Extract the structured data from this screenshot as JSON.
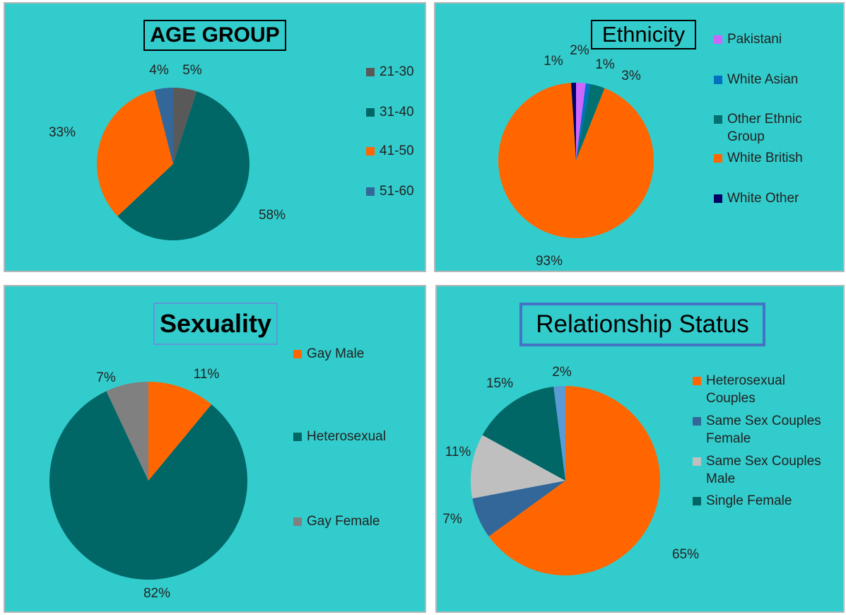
{
  "chart_data": [
    {
      "type": "pie",
      "title": "AGE GROUP",
      "categories": [
        "21-30",
        "31-40",
        "41-50",
        "51-60"
      ],
      "values": [
        5,
        58,
        33,
        4
      ],
      "value_labels": [
        "5%",
        "58%",
        "33%",
        "4%"
      ],
      "colors": [
        "#595959",
        "#006666",
        "#FF6600",
        "#336699"
      ]
    },
    {
      "type": "pie",
      "title": "Ethnicity",
      "categories": [
        "Pakistani",
        "White Asian",
        "Other Ethnic Group",
        "White British",
        "White Other"
      ],
      "values": [
        2,
        1,
        3,
        93,
        1
      ],
      "value_labels": [
        "2%",
        "1%",
        "3%",
        "93%",
        "1%"
      ],
      "colors": [
        "#CC66FF",
        "#0070C0",
        "#007070",
        "#FF6600",
        "#000066"
      ]
    },
    {
      "type": "pie",
      "title": "Sexuality",
      "categories": [
        "Gay Male",
        "Heterosexual",
        "Gay Female"
      ],
      "values": [
        11,
        82,
        7
      ],
      "value_labels": [
        "11%",
        "82%",
        "7%"
      ],
      "colors": [
        "#FF6600",
        "#006666",
        "#808080"
      ]
    },
    {
      "type": "pie",
      "title": "Relationship Status",
      "categories": [
        "Heterosexual Couples",
        "Same Sex Couples Female",
        "Same Sex Couples Male",
        "Single Female",
        null
      ],
      "values": [
        65,
        7,
        11,
        15,
        2
      ],
      "value_labels": [
        "65%",
        "7%",
        "11%",
        "15%",
        "2%"
      ],
      "colors": [
        "#FF6600",
        "#336699",
        "#BFBFBF",
        "#006666",
        "#5B9BD5"
      ]
    }
  ]
}
